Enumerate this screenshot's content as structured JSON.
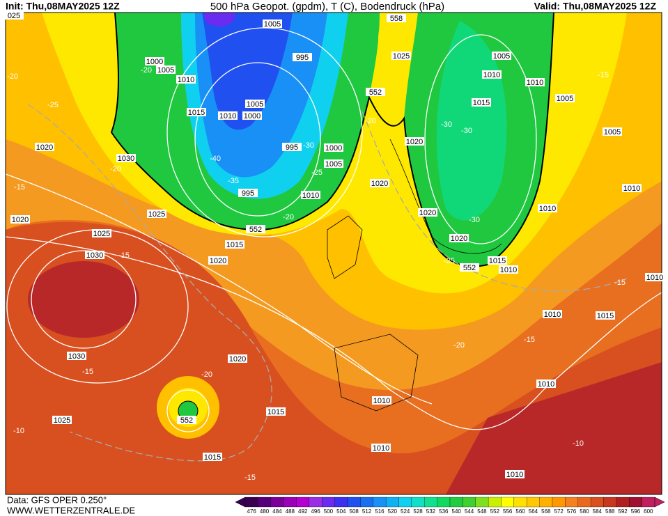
{
  "header": {
    "init": "Init: Thu,08MAY2025 12Z",
    "title": "500 hPa Geopot. (gpdm), T (C), Bodendruck (hPa)",
    "valid": "Valid: Thu,08MAY2025 12Z"
  },
  "footer": {
    "source": "Data: GFS OPER 0.250°",
    "site": "WWW.WETTERZENTRALE.DE"
  },
  "legend": {
    "values": [
      476,
      480,
      484,
      488,
      492,
      496,
      500,
      504,
      508,
      512,
      516,
      520,
      524,
      528,
      532,
      536,
      540,
      544,
      548,
      552,
      556,
      560,
      564,
      568,
      572,
      576,
      580,
      584,
      588,
      592,
      596,
      600
    ],
    "colors": [
      "#3a0050",
      "#55007a",
      "#7a0099",
      "#9a00b8",
      "#b400d0",
      "#9a2ee6",
      "#6a2cf0",
      "#3d30f0",
      "#2050f0",
      "#1870f0",
      "#1890f5",
      "#10b0f5",
      "#10d0f0",
      "#10e0c8",
      "#10e090",
      "#10d860",
      "#20cc40",
      "#40d030",
      "#80e020",
      "#c8f000",
      "#ffff00",
      "#ffe000",
      "#ffc800",
      "#ffb000",
      "#ff9800",
      "#f58020",
      "#e86820",
      "#d85020",
      "#c83820",
      "#b02020",
      "#a01030",
      "#c02060"
    ]
  },
  "map": {
    "labels": [
      "025",
      "1005",
      "558",
      "1025",
      "1005",
      "1010",
      "995",
      "1000",
      "1005",
      "1010",
      "-20",
      "-20",
      "-25",
      "1015",
      "1010",
      "1005",
      "1000",
      "1015",
      "1010",
      "1005",
      "-15",
      "552",
      "-20",
      "-30",
      "-30",
      "1005",
      "1020",
      "1030",
      "-20",
      "-40",
      "-35",
      "995",
      "995",
      "-30",
      "1000",
      "1005",
      "-25",
      "1010",
      "1020",
      "1020",
      "1010",
      "-15",
      "1025",
      "1020",
      "1025",
      "552",
      "-20",
      "1020",
      "-30",
      "1010",
      "1015",
      "1030",
      "-15",
      "1020",
      "1015",
      "-25",
      "552",
      "1010",
      "1020",
      "1010",
      "-15",
      "1010",
      "1015",
      "-15",
      "-20",
      "1030",
      "1020",
      "-15",
      "-20",
      "552",
      "1015",
      "1010",
      "1010",
      "1025",
      "-10",
      "1010",
      "1015",
      "-10",
      "-15",
      "1010"
    ]
  }
}
